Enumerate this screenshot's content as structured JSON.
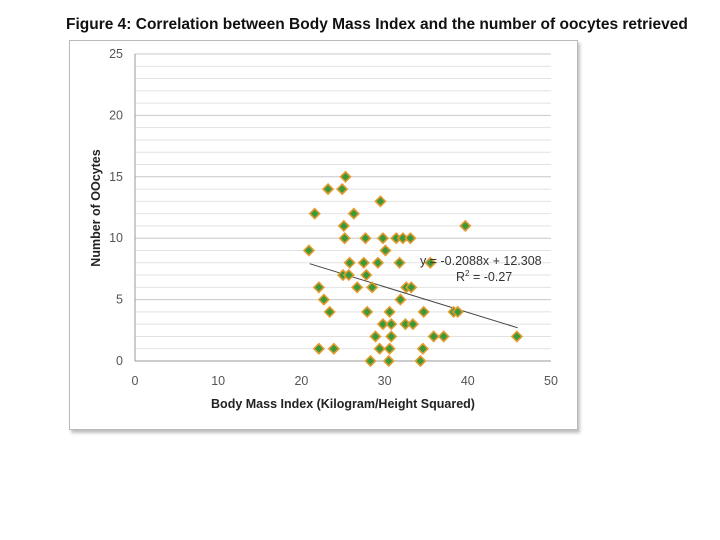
{
  "page": {
    "figure_title": "Figure 4: Correlation between Body Mass Index and the number of oocytes retrieved"
  },
  "chart_data": {
    "type": "scatter",
    "title": "",
    "xlabel": "Body Mass Index (Kilogram/Height Squared)",
    "ylabel": "Number of OOcytes",
    "xlim": [
      0,
      50
    ],
    "ylim": [
      0,
      25
    ],
    "x_ticks": [
      0,
      10,
      20,
      30,
      40,
      50
    ],
    "y_ticks": [
      0,
      5,
      10,
      15,
      20,
      25
    ],
    "grid": "horizontal",
    "marker_color": "#3a9a3a",
    "marker_edge_color": "#e39a2e",
    "trendline_color": "#444444",
    "trendline": {
      "slope": -0.2088,
      "intercept": 12.308,
      "x_range": [
        21,
        46
      ],
      "equation": "y = -0.2088x + 12.308",
      "r2_label": "R",
      "r2_sup": "2",
      "r2_value": " = -0.27"
    },
    "points": [
      {
        "x": 25.3,
        "y": 15
      },
      {
        "x": 23.2,
        "y": 14
      },
      {
        "x": 24.9,
        "y": 14
      },
      {
        "x": 29.5,
        "y": 13
      },
      {
        "x": 21.6,
        "y": 12
      },
      {
        "x": 26.3,
        "y": 12
      },
      {
        "x": 25.1,
        "y": 11
      },
      {
        "x": 39.7,
        "y": 11
      },
      {
        "x": 25.2,
        "y": 10
      },
      {
        "x": 27.7,
        "y": 10
      },
      {
        "x": 29.8,
        "y": 10
      },
      {
        "x": 31.4,
        "y": 10
      },
      {
        "x": 32.2,
        "y": 10
      },
      {
        "x": 33.1,
        "y": 10
      },
      {
        "x": 20.9,
        "y": 9
      },
      {
        "x": 30.1,
        "y": 9
      },
      {
        "x": 25.8,
        "y": 8
      },
      {
        "x": 27.5,
        "y": 8
      },
      {
        "x": 29.2,
        "y": 8
      },
      {
        "x": 31.8,
        "y": 8
      },
      {
        "x": 35.5,
        "y": 8
      },
      {
        "x": 25.0,
        "y": 7
      },
      {
        "x": 25.7,
        "y": 7
      },
      {
        "x": 27.8,
        "y": 7
      },
      {
        "x": 22.1,
        "y": 6
      },
      {
        "x": 26.7,
        "y": 6
      },
      {
        "x": 28.5,
        "y": 6
      },
      {
        "x": 32.6,
        "y": 6
      },
      {
        "x": 33.2,
        "y": 6
      },
      {
        "x": 22.7,
        "y": 5
      },
      {
        "x": 31.9,
        "y": 5
      },
      {
        "x": 23.4,
        "y": 4
      },
      {
        "x": 27.9,
        "y": 4
      },
      {
        "x": 30.6,
        "y": 4
      },
      {
        "x": 34.7,
        "y": 4
      },
      {
        "x": 38.3,
        "y": 4
      },
      {
        "x": 38.8,
        "y": 4
      },
      {
        "x": 29.8,
        "y": 3
      },
      {
        "x": 30.8,
        "y": 3
      },
      {
        "x": 32.5,
        "y": 3
      },
      {
        "x": 33.4,
        "y": 3
      },
      {
        "x": 28.9,
        "y": 2
      },
      {
        "x": 30.8,
        "y": 2
      },
      {
        "x": 35.9,
        "y": 2
      },
      {
        "x": 37.1,
        "y": 2
      },
      {
        "x": 45.9,
        "y": 2
      },
      {
        "x": 22.1,
        "y": 1
      },
      {
        "x": 23.9,
        "y": 1
      },
      {
        "x": 29.4,
        "y": 1
      },
      {
        "x": 30.6,
        "y": 1
      },
      {
        "x": 34.6,
        "y": 1
      },
      {
        "x": 28.3,
        "y": 0
      },
      {
        "x": 30.5,
        "y": 0
      },
      {
        "x": 34.3,
        "y": 0
      }
    ]
  }
}
